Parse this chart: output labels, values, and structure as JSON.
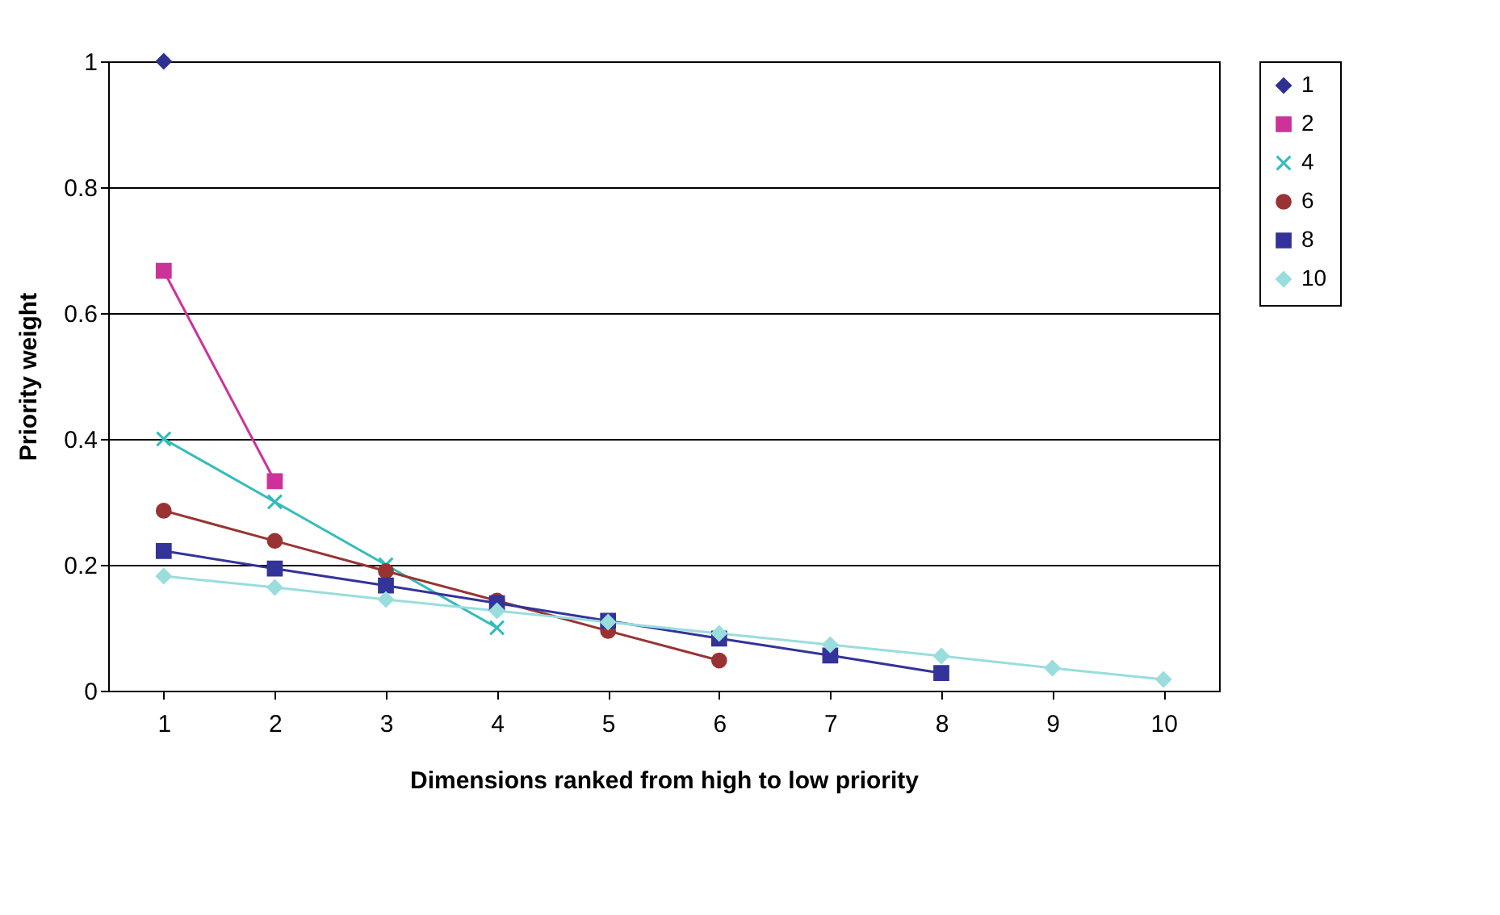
{
  "chart_data": {
    "type": "line",
    "xlabel": "Dimensions ranked from high to low priority",
    "ylabel": "Priority weight",
    "categories": [
      "1",
      "2",
      "3",
      "4",
      "5",
      "6",
      "7",
      "8",
      "9",
      "10"
    ],
    "ylim": [
      0,
      1
    ],
    "yticks": [
      {
        "value": 0,
        "label": "0"
      },
      0.2,
      0.4,
      0.6,
      0.8,
      {
        "value": 1,
        "label": "1"
      }
    ],
    "grid": "y",
    "legend": "right",
    "series": [
      {
        "name": "1",
        "color": "#2e3192",
        "marker": "diamond",
        "values": [
          1,
          null,
          null,
          null,
          null,
          null,
          null,
          null,
          null,
          null
        ]
      },
      {
        "name": "2",
        "color": "#cc3399",
        "marker": "square",
        "values": [
          0.667,
          0.333,
          null,
          null,
          null,
          null,
          null,
          null,
          null,
          null
        ]
      },
      {
        "name": "4",
        "color": "#33bbbb",
        "marker": "cross",
        "values": [
          0.4,
          0.3,
          0.2,
          0.1,
          null,
          null,
          null,
          null,
          null,
          null
        ]
      },
      {
        "name": "6",
        "color": "#993333",
        "marker": "circle",
        "values": [
          0.286,
          0.238,
          0.19,
          0.143,
          0.095,
          0.048,
          null,
          null,
          null,
          null
        ]
      },
      {
        "name": "8",
        "color": "#333399",
        "marker": "square",
        "values": [
          0.222,
          0.194,
          0.167,
          0.139,
          0.111,
          0.083,
          0.056,
          0.028,
          null,
          null
        ]
      },
      {
        "name": "10",
        "color": "#99dddd",
        "marker": "diamond",
        "values": [
          0.182,
          0.164,
          0.145,
          0.127,
          0.109,
          0.091,
          0.073,
          0.055,
          0.036,
          0.018
        ]
      }
    ]
  }
}
